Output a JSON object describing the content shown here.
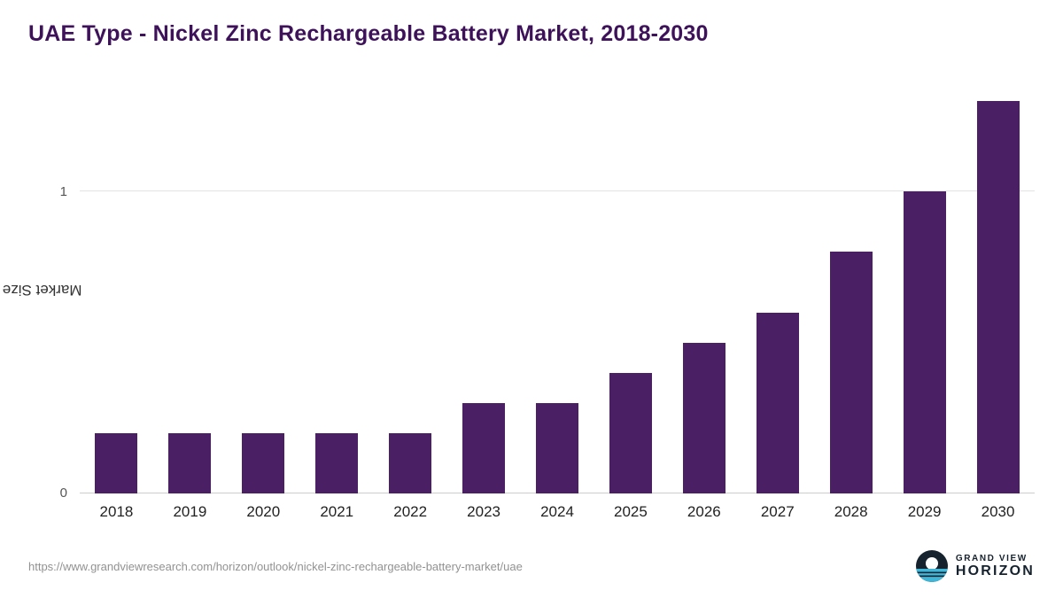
{
  "title": "UAE Type - Nickel Zinc Rechargeable Battery Market, 2018-2030",
  "chart_data": {
    "type": "bar",
    "title": "UAE Type - Nickel Zinc Rechargeable Battery Market, 2018-2030",
    "categories": [
      "2018",
      "2019",
      "2020",
      "2021",
      "2022",
      "2023",
      "2024",
      "2025",
      "2026",
      "2027",
      "2028",
      "2029",
      "2030"
    ],
    "values": [
      0.2,
      0.2,
      0.2,
      0.2,
      0.2,
      0.3,
      0.3,
      0.4,
      0.5,
      0.6,
      0.8,
      1.0,
      1.3
    ],
    "xlabel": "",
    "ylabel": "Market Size (US$M)",
    "ylim": [
      0,
      1.35
    ],
    "yticks": [
      0,
      1
    ],
    "ytick_labels": [
      "0",
      "1"
    ],
    "grid": "horizontal-gridline-at-1",
    "legend": "none",
    "bar_color": "#4a1f63"
  },
  "footer": {
    "source_url": "https://www.grandviewresearch.com/horizon/outlook/nickel-zinc-rechargeable-battery-market/uae",
    "logo": {
      "line1": "GRAND VIEW",
      "line2": "HORIZON"
    }
  },
  "colors": {
    "title": "#3d1259",
    "bar": "#4a1f63",
    "gridline": "#e2e2e2",
    "axis_text": "#555555"
  }
}
